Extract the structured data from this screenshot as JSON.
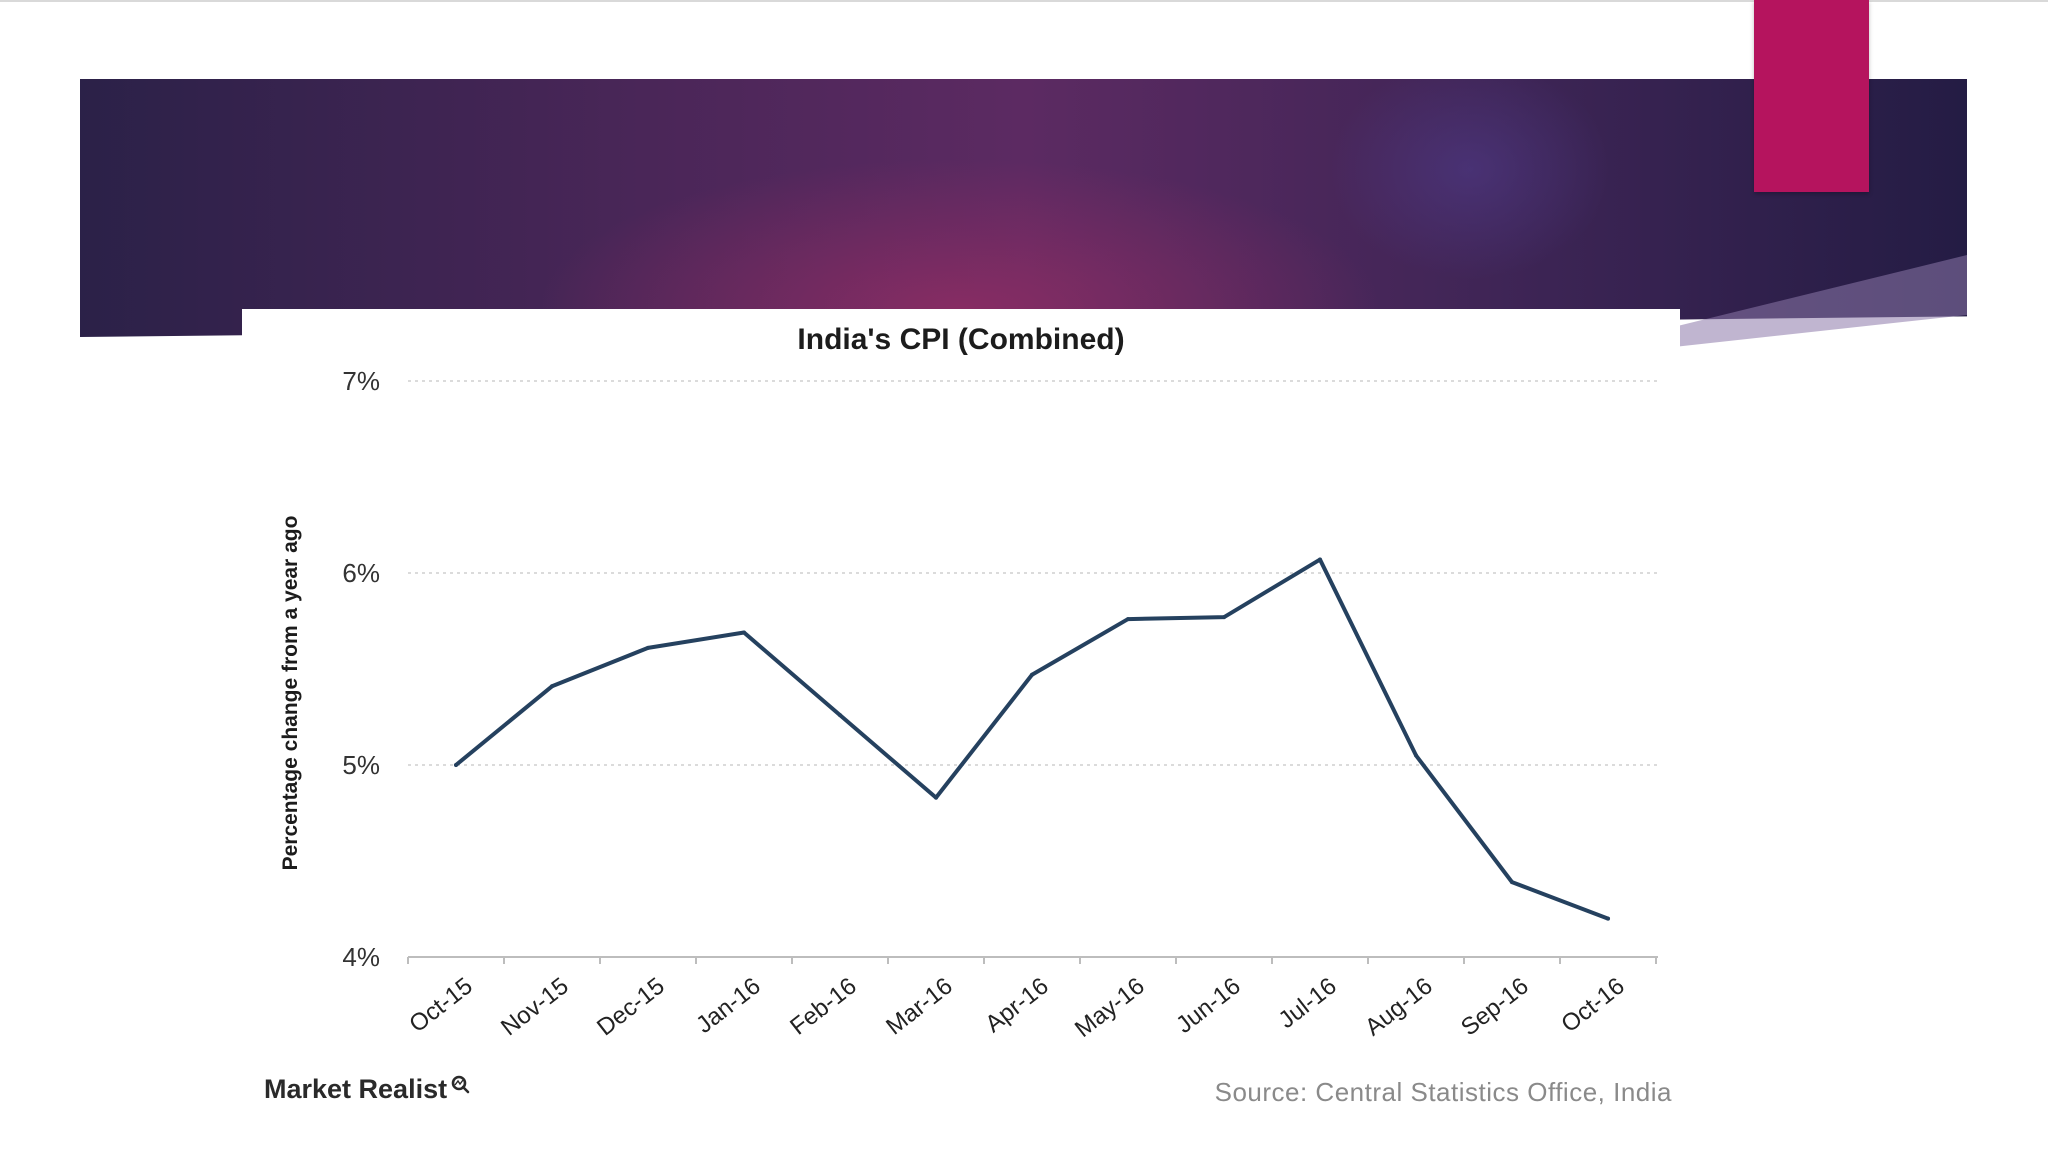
{
  "chart_data": {
    "type": "line",
    "title": "India's CPI (Combined)",
    "xlabel": "",
    "ylabel": "Percentage change from a year ago",
    "categories": [
      "Oct-15",
      "Nov-15",
      "Dec-15",
      "Jan-16",
      "Feb-16",
      "Mar-16",
      "Apr-16",
      "May-16",
      "Jun-16",
      "Jul-16",
      "Aug-16",
      "Sep-16",
      "Oct-16"
    ],
    "series": [
      {
        "name": "CPI (Combined)",
        "values": [
          5.0,
          5.41,
          5.61,
          5.69,
          5.26,
          4.83,
          5.47,
          5.76,
          5.77,
          6.07,
          5.05,
          4.39,
          4.2
        ]
      }
    ],
    "ylim": [
      4,
      7
    ],
    "yticks": [
      4,
      5,
      6,
      7
    ],
    "ytick_labels": [
      "4%",
      "5%",
      "6%",
      "7%"
    ],
    "grid": true,
    "line_color": "#25415f",
    "grid_color": "#cfcfcf"
  },
  "footer": {
    "brand": "Market Realist",
    "brand_icon": "magnifier-icon",
    "source": "Source: Central Statistics Office, India"
  },
  "colors": {
    "banner_purple": "#4a2658",
    "accent_pink": "#b5145e"
  }
}
